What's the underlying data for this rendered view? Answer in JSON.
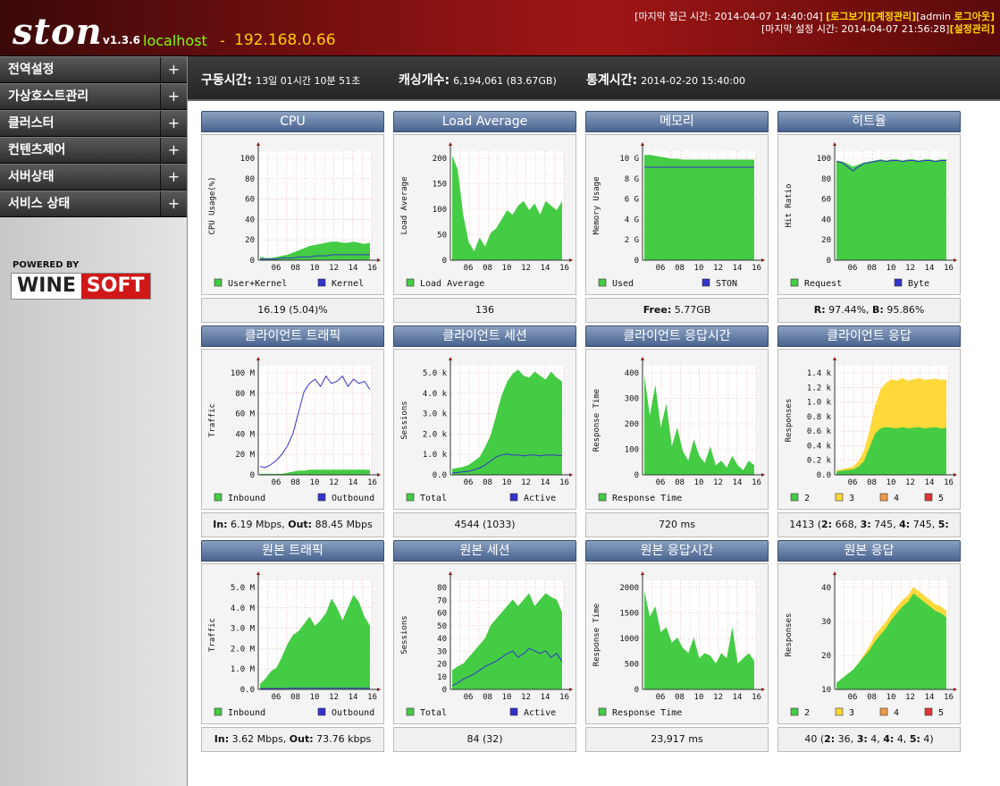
{
  "header": {
    "logo": "ston",
    "version": "v1.3.6",
    "hostname": "localhost",
    "dash": "-",
    "ip": "192.168.0.66",
    "login_label": "[마지막 접근 시간: 2014-04-07 14:40:04]",
    "log_view": "[로그보기]",
    "account": "[계정관리]",
    "user": "[admin ",
    "logout": "로그아웃]",
    "setting_label": "[마지막 설정 시간: 2014-04-07 21:56:28]",
    "settings": "[설정관리]"
  },
  "sidebar": {
    "items": [
      {
        "label": "전역설정",
        "plus": "+"
      },
      {
        "label": "가상호스트관리",
        "plus": "+"
      },
      {
        "label": "클러스터",
        "plus": "+"
      },
      {
        "label": "컨텐츠제어",
        "plus": "+"
      },
      {
        "label": "서버상태",
        "plus": "+"
      },
      {
        "label": "서비스 상태",
        "plus": "+"
      }
    ],
    "powered": "POWERED BY",
    "brand_a": "WINE",
    "brand_b": "SOFT"
  },
  "status": {
    "uptime_label": "구동시간:",
    "uptime": "13일 01시간 10분 51초",
    "cache_label": "캐싱개수:",
    "cache": "6,194,061 (83.67GB)",
    "stat_label": "통계시간:",
    "stat": "2014-02-20 15:40:00"
  },
  "colors": {
    "green": "#44cc44",
    "blue": "#3333cc",
    "yellow": "#ffd83a",
    "orange": "#ee9944",
    "red": "#dd3333"
  },
  "panels": [
    {
      "title": "CPU",
      "ylabel": "CPU Usage(%)",
      "foot": "16.19 (5.04)%"
    },
    {
      "title": "Load Average",
      "ylabel": "Load Average",
      "foot": "136"
    },
    {
      "title": "메모리",
      "ylabel": "Memory Usage",
      "foot_b": "Free:",
      "foot": " 5.77GB"
    },
    {
      "title": "히트율",
      "ylabel": "Hit Ratio",
      "foot_b": "R:",
      "foot": " 97.44%, ",
      "foot_b2": "B:",
      "foot2": " 95.86%"
    },
    {
      "title": "클라이언트 트래픽",
      "ylabel": "Traffic",
      "foot_b": "In:",
      "foot": " 6.19 Mbps, ",
      "foot_b2": "Out:",
      "foot2": " 88.45 Mbps"
    },
    {
      "title": "클라이언트 세션",
      "ylabel": "Sessions",
      "foot": "4544 (1033)"
    },
    {
      "title": "클라이언트 응답시간",
      "ylabel": "Response Time",
      "foot": "720 ms"
    },
    {
      "title": "클라이언트 응답",
      "ylabel": "Responses",
      "foot": "1413 (",
      "foot_b": "2:",
      "foot2": " 668, ",
      "foot_b2": "3:",
      "foot3": " 745, ",
      "foot_b3": "4:",
      "foot4": " 745, ",
      "foot_b4": "5:",
      "foot5": " 745)"
    },
    {
      "title": "원본 트래픽",
      "ylabel": "Traffic",
      "foot_b": "In:",
      "foot": " 3.62 Mbps, ",
      "foot_b2": "Out:",
      "foot2": " 73.76 kbps"
    },
    {
      "title": "원본 세션",
      "ylabel": "Sessions",
      "foot": "84 (32)"
    },
    {
      "title": "원본 응답시간",
      "ylabel": "Response Time",
      "foot": "23,917 ms"
    },
    {
      "title": "원본 응답",
      "ylabel": "Responses",
      "foot": "40 (",
      "foot_b": "2:",
      "foot2": " 36, ",
      "foot_b2": "3:",
      "foot3": " 4, ",
      "foot_b3": "4:",
      "foot4": " 4, ",
      "foot_b4": "5:",
      "foot5": " 4)"
    }
  ],
  "chart_data": [
    {
      "type": "area",
      "title": "CPU",
      "ylabel": "CPU Usage(%)",
      "ylim": [
        0,
        100
      ],
      "yticks": [
        "0",
        "20",
        "40",
        "60",
        "80",
        "100"
      ],
      "xticks": [
        "06",
        "08",
        "10",
        "12",
        "14",
        "16"
      ],
      "series": [
        {
          "name": "User+Kernel",
          "color": "#44cc44",
          "kind": "area",
          "values": [
            3,
            2,
            2,
            3,
            4,
            5,
            7,
            9,
            11,
            13,
            14,
            15,
            16,
            17,
            17,
            16,
            16,
            17,
            16,
            15,
            16
          ]
        },
        {
          "name": "Kernel",
          "color": "#3333cc",
          "kind": "line",
          "values": [
            1,
            1,
            1,
            1,
            2,
            2,
            2,
            3,
            3,
            3,
            4,
            4,
            4,
            5,
            5,
            5,
            5,
            5,
            5,
            5,
            5
          ]
        }
      ]
    },
    {
      "type": "area",
      "title": "Load Average",
      "ylabel": "Load Average",
      "ylim": [
        0,
        240
      ],
      "yticks": [
        "0",
        "50",
        "100",
        "150",
        "200"
      ],
      "xticks": [
        "06",
        "08",
        "10",
        "12",
        "14",
        "16"
      ],
      "series": [
        {
          "name": "Load Average",
          "color": "#44cc44",
          "kind": "area",
          "values": [
            230,
            200,
            100,
            40,
            20,
            50,
            30,
            60,
            70,
            90,
            110,
            100,
            120,
            130,
            110,
            125,
            100,
            130,
            120,
            110,
            130
          ]
        }
      ]
    },
    {
      "type": "area",
      "title": "메모리",
      "ylabel": "Memory Usage",
      "ylim": [
        0,
        11.5
      ],
      "yticks": [
        "0",
        "2 G",
        "4 G",
        "6 G",
        "8 G",
        "10 G"
      ],
      "xticks": [
        "06",
        "08",
        "10",
        "12",
        "14",
        "16"
      ],
      "series": [
        {
          "name": "Used",
          "color": "#44cc44",
          "kind": "area",
          "values": [
            11.1,
            11.1,
            11.0,
            10.9,
            10.8,
            10.7,
            10.7,
            10.6,
            10.6,
            10.6,
            10.6,
            10.6,
            10.6,
            10.6,
            10.6,
            10.6,
            10.6,
            10.6,
            10.6,
            10.6,
            10.6
          ]
        },
        {
          "name": "STON",
          "color": "#3333cc",
          "kind": "line",
          "values": [
            9.8,
            9.8,
            9.8,
            9.8,
            9.8,
            9.8,
            9.8,
            9.8,
            9.8,
            9.8,
            9.8,
            9.8,
            9.8,
            9.8,
            9.8,
            9.8,
            9.8,
            9.8,
            9.8,
            9.8,
            9.8
          ]
        }
      ]
    },
    {
      "type": "area",
      "title": "히트율",
      "ylabel": "Hit Ratio",
      "ylim": [
        0,
        105
      ],
      "yticks": [
        "0",
        "20",
        "40",
        "60",
        "80",
        "100"
      ],
      "xticks": [
        "06",
        "08",
        "10",
        "12",
        "14",
        "16"
      ],
      "series": [
        {
          "name": "Request",
          "color": "#44cc44",
          "kind": "area",
          "values": [
            96,
            95,
            93,
            90,
            92,
            94,
            95,
            96,
            97,
            96,
            97,
            97,
            96,
            97,
            97,
            96,
            97,
            97,
            96,
            97,
            97
          ]
        },
        {
          "name": "Byte",
          "color": "#3333cc",
          "kind": "line",
          "values": [
            95,
            94,
            90,
            86,
            90,
            93,
            94,
            95,
            96,
            95,
            96,
            96,
            95,
            96,
            96,
            95,
            96,
            96,
            95,
            96,
            96
          ]
        }
      ]
    },
    {
      "type": "area",
      "title": "클라이언트 트래픽",
      "ylabel": "Traffic",
      "ylim": [
        0,
        105
      ],
      "yticks": [
        "0",
        "20 M",
        "40 M",
        "60 M",
        "80 M",
        "100 M"
      ],
      "xticks": [
        "06",
        "08",
        "10",
        "12",
        "14",
        "16"
      ],
      "series": [
        {
          "name": "Inbound",
          "color": "#44cc44",
          "kind": "area",
          "values": [
            1,
            1,
            1,
            1,
            1,
            2,
            3,
            4,
            4,
            5,
            5,
            5,
            5,
            5,
            5,
            5,
            5,
            5,
            5,
            5,
            5
          ]
        },
        {
          "name": "Outbound",
          "color": "#3333cc",
          "kind": "line",
          "values": [
            8,
            7,
            10,
            14,
            20,
            28,
            40,
            60,
            80,
            88,
            92,
            85,
            95,
            88,
            90,
            95,
            85,
            92,
            88,
            90,
            82
          ]
        }
      ]
    },
    {
      "type": "area",
      "title": "클라이언트 세션",
      "ylabel": "Sessions",
      "ylim": [
        0,
        5500
      ],
      "yticks": [
        "0.0",
        "1.0 k",
        "2.0 k",
        "3.0 k",
        "4.0 k",
        "5.0 k"
      ],
      "xticks": [
        "06",
        "08",
        "10",
        "12",
        "14",
        "16"
      ],
      "series": [
        {
          "name": "Total",
          "color": "#44cc44",
          "kind": "area",
          "values": [
            300,
            350,
            400,
            500,
            700,
            900,
            1400,
            2000,
            3000,
            4000,
            4700,
            5100,
            5300,
            5000,
            4900,
            5200,
            5000,
            4800,
            5200,
            4900,
            4700
          ]
        },
        {
          "name": "Active",
          "color": "#3333cc",
          "kind": "line",
          "values": [
            100,
            120,
            150,
            180,
            250,
            350,
            500,
            700,
            900,
            1000,
            1050,
            1000,
            1000,
            950,
            1000,
            1000,
            950,
            1000,
            1000,
            1000,
            950
          ]
        }
      ]
    },
    {
      "type": "area",
      "title": "클라이언트 응답시간",
      "ylabel": "Response Time",
      "ylim": [
        0,
        460
      ],
      "yticks": [
        "0",
        "100",
        "200",
        "300",
        "400"
      ],
      "xticks": [
        "06",
        "08",
        "10",
        "12",
        "14",
        "16"
      ],
      "series": [
        {
          "name": "Response Time",
          "color": "#44cc44",
          "kind": "area",
          "values": [
            420,
            250,
            380,
            200,
            300,
            120,
            200,
            100,
            60,
            150,
            80,
            50,
            120,
            40,
            60,
            30,
            80,
            40,
            20,
            60,
            40
          ]
        }
      ]
    },
    {
      "type": "area",
      "title": "클라이언트 응답",
      "ylabel": "Responses",
      "ylim": [
        0,
        1600
      ],
      "yticks": [
        "0.0",
        "0.2 k",
        "0.4 k",
        "0.6 k",
        "0.8 k",
        "1.0 k",
        "1.2 k",
        "1.4 k"
      ],
      "xticks": [
        "06",
        "08",
        "10",
        "12",
        "14",
        "16"
      ],
      "series": [
        {
          "name": "2",
          "color": "#44cc44",
          "kind": "area",
          "values": [
            50,
            60,
            70,
            80,
            120,
            200,
            400,
            600,
            680,
            700,
            690,
            680,
            700,
            680,
            690,
            700,
            680,
            690,
            700,
            680,
            690
          ]
        },
        {
          "name": "3",
          "color": "#ffd83a",
          "kind": "stack",
          "values": [
            70,
            80,
            100,
            120,
            200,
            350,
            650,
            1000,
            1250,
            1350,
            1400,
            1380,
            1420,
            1380,
            1400,
            1420,
            1390,
            1400,
            1410,
            1390,
            1400
          ]
        },
        {
          "name": "4",
          "color": "#ee9944",
          "kind": "legend",
          "values": []
        },
        {
          "name": "5",
          "color": "#dd3333",
          "kind": "legend",
          "values": []
        }
      ]
    },
    {
      "type": "area",
      "title": "원본 트래픽",
      "ylabel": "Traffic",
      "ylim": [
        0,
        6
      ],
      "yticks": [
        "0.0",
        "1.0 M",
        "2.0 M",
        "3.0 M",
        "4.0 M",
        "5.0 M"
      ],
      "xticks": [
        "06",
        "08",
        "10",
        "12",
        "14",
        "16"
      ],
      "series": [
        {
          "name": "Inbound",
          "color": "#44cc44",
          "kind": "area",
          "values": [
            0.3,
            0.6,
            1.0,
            1.2,
            1.8,
            2.5,
            3.0,
            3.2,
            3.6,
            4.0,
            3.5,
            3.8,
            4.2,
            5.0,
            4.5,
            3.8,
            4.5,
            5.2,
            4.8,
            4.0,
            3.5
          ]
        },
        {
          "name": "Outbound",
          "color": "#3333cc",
          "kind": "line",
          "values": [
            0.05,
            0.05,
            0.05,
            0.05,
            0.05,
            0.06,
            0.07,
            0.07,
            0.07,
            0.07,
            0.07,
            0.07,
            0.07,
            0.07,
            0.07,
            0.07,
            0.07,
            0.07,
            0.07,
            0.07,
            0.07
          ]
        }
      ]
    },
    {
      "type": "area",
      "title": "원본 세션",
      "ylabel": "Sessions",
      "ylim": [
        0,
        85
      ],
      "yticks": [
        "0",
        "10",
        "20",
        "30",
        "40",
        "50",
        "60",
        "70",
        "80"
      ],
      "xticks": [
        "06",
        "08",
        "10",
        "12",
        "14",
        "16"
      ],
      "series": [
        {
          "name": "Total",
          "color": "#44cc44",
          "kind": "area",
          "values": [
            15,
            18,
            20,
            25,
            30,
            35,
            40,
            50,
            55,
            60,
            65,
            70,
            65,
            70,
            75,
            65,
            70,
            75,
            72,
            70,
            60
          ]
        },
        {
          "name": "Active",
          "color": "#3333cc",
          "kind": "line",
          "values": [
            3,
            5,
            8,
            10,
            12,
            15,
            18,
            20,
            22,
            25,
            28,
            30,
            25,
            28,
            32,
            30,
            28,
            30,
            25,
            28,
            22
          ]
        }
      ]
    },
    {
      "type": "area",
      "title": "원본 응답시간",
      "ylabel": "Response Time",
      "ylim": [
        0,
        2100
      ],
      "yticks": [
        "0",
        "500",
        "1000",
        "1500",
        "2000"
      ],
      "xticks": [
        "06",
        "08",
        "10",
        "12",
        "14",
        "16"
      ],
      "series": [
        {
          "name": "Response Time",
          "color": "#44cc44",
          "kind": "area",
          "values": [
            1900,
            1400,
            1600,
            1100,
            1200,
            900,
            1000,
            800,
            700,
            1000,
            600,
            700,
            650,
            500,
            700,
            600,
            1200,
            500,
            600,
            700,
            550
          ]
        }
      ]
    },
    {
      "type": "area",
      "title": "원본 응답",
      "ylabel": "Responses",
      "ylim": [
        0,
        50
      ],
      "yticks": [
        "10",
        "20",
        "30",
        "40"
      ],
      "xticks": [
        "06",
        "08",
        "10",
        "12",
        "14",
        "16"
      ],
      "series": [
        {
          "name": "2",
          "color": "#44cc44",
          "kind": "area",
          "values": [
            3,
            5,
            7,
            9,
            12,
            15,
            18,
            22,
            25,
            28,
            32,
            35,
            38,
            40,
            44,
            42,
            40,
            38,
            36,
            35,
            33
          ]
        },
        {
          "name": "3",
          "color": "#ffd83a",
          "kind": "stack",
          "values": [
            3,
            5,
            7,
            9,
            12,
            16,
            20,
            25,
            28,
            31,
            35,
            38,
            41,
            43,
            47,
            45,
            43,
            41,
            39,
            38,
            36
          ]
        },
        {
          "name": "4",
          "color": "#ee9944",
          "kind": "legend",
          "values": []
        },
        {
          "name": "5",
          "color": "#dd3333",
          "kind": "legend",
          "values": []
        }
      ]
    }
  ]
}
